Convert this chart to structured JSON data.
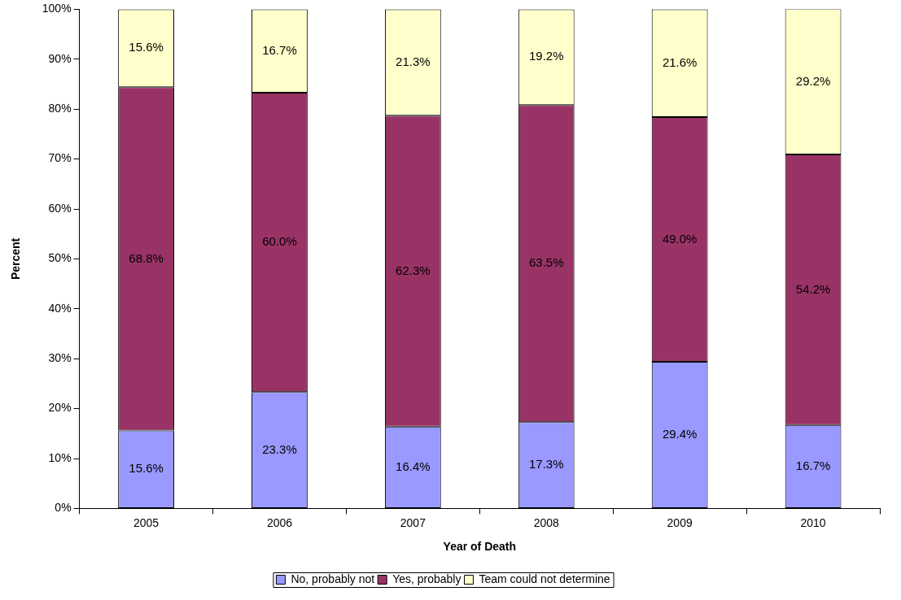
{
  "chart_data": {
    "type": "bar",
    "stacked": true,
    "xlabel": "Year of Death",
    "ylabel": "Percent",
    "categories": [
      "2005",
      "2006",
      "2007",
      "2008",
      "2009",
      "2010"
    ],
    "series": [
      {
        "name": "No, probably not",
        "color": "#9999ff",
        "values": [
          15.6,
          23.3,
          16.4,
          17.3,
          29.4,
          16.7
        ],
        "value_labels": [
          "15.6%",
          "23.3%",
          "16.4%",
          "17.3%",
          "29.4%",
          "16.7%"
        ]
      },
      {
        "name": "Yes, probably",
        "color": "#993366",
        "values": [
          68.8,
          60.0,
          62.3,
          63.5,
          49.0,
          54.2
        ],
        "value_labels": [
          "68.8%",
          "60.0%",
          "62.3%",
          "63.5%",
          "49.0%",
          "54.2%"
        ]
      },
      {
        "name": "Team could not determine",
        "color": "#ffffcc",
        "values": [
          15.6,
          16.7,
          21.3,
          19.2,
          21.6,
          29.2
        ],
        "value_labels": [
          "15.6%",
          "16.7%",
          "21.3%",
          "19.2%",
          "21.6%",
          "29.2%"
        ]
      }
    ],
    "ylim": [
      0,
      100
    ],
    "yticks": [
      {
        "value": 0,
        "label": "0%"
      },
      {
        "value": 10,
        "label": "10%"
      },
      {
        "value": 20,
        "label": "20%"
      },
      {
        "value": 30,
        "label": "30%"
      },
      {
        "value": 40,
        "label": "40%"
      },
      {
        "value": 50,
        "label": "50%"
      },
      {
        "value": 60,
        "label": "60%"
      },
      {
        "value": 70,
        "label": "70%"
      },
      {
        "value": 80,
        "label": "80%"
      },
      {
        "value": 90,
        "label": "90%"
      },
      {
        "value": 100,
        "label": "100%"
      }
    ],
    "legend": "bottom",
    "grid": false
  }
}
